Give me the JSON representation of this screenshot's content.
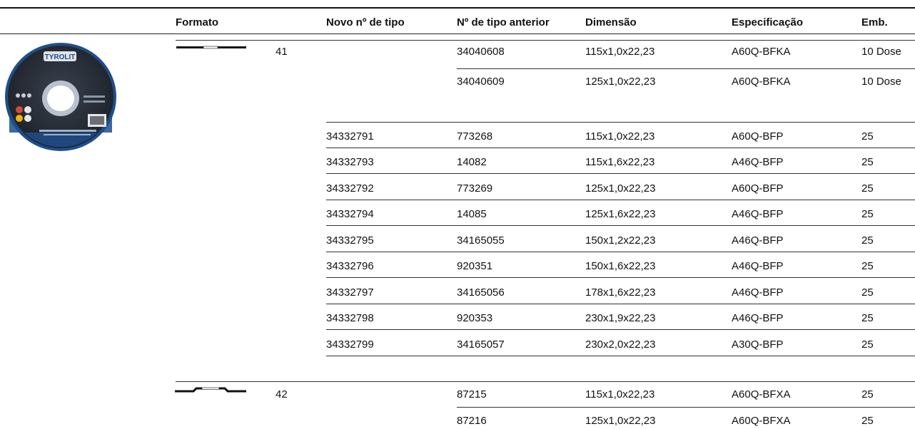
{
  "table": {
    "headers": {
      "formato": "Formato",
      "novo": "Novo nº de tipo",
      "anterior": "Nº de tipo anterior",
      "dimensao": "Dimensão",
      "especificacao": "Especificação",
      "emb": "Emb."
    },
    "shapes": [
      {
        "number": "41",
        "icon": "flat-disc-profile-icon"
      },
      {
        "number": "42",
        "icon": "depressed-center-disc-profile-icon"
      }
    ],
    "rows": [
      {
        "novo": "",
        "anterior": "34040608",
        "dimensao": "115x1,0x22,23",
        "especificacao": "A60Q-BFKA",
        "emb": "10 Dose"
      },
      {
        "novo": "",
        "anterior": "34040609",
        "dimensao": "125x1,0x22,23",
        "especificacao": "A60Q-BFKA",
        "emb": "10 Dose"
      },
      {
        "novo": "",
        "anterior": "",
        "dimensao": "",
        "especificacao": "",
        "emb": ""
      },
      {
        "novo": "34332791",
        "anterior": "773268",
        "dimensao": "115x1,0x22,23",
        "especificacao": "A60Q-BFP",
        "emb": "25"
      },
      {
        "novo": "34332793",
        "anterior": "14082",
        "dimensao": "115x1,6x22,23",
        "especificacao": "A46Q-BFP",
        "emb": "25"
      },
      {
        "novo": "34332792",
        "anterior": "773269",
        "dimensao": "125x1,0x22,23",
        "especificacao": "A60Q-BFP",
        "emb": "25"
      },
      {
        "novo": "34332794",
        "anterior": "14085",
        "dimensao": "125x1,6x22,23",
        "especificacao": "A46Q-BFP",
        "emb": "25"
      },
      {
        "novo": "34332795",
        "anterior": "34165055",
        "dimensao": "150x1,2x22,23",
        "especificacao": "A46Q-BFP",
        "emb": "25"
      },
      {
        "novo": "34332796",
        "anterior": "920351",
        "dimensao": "150x1,6x22,23",
        "especificacao": "A46Q-BFP",
        "emb": "25"
      },
      {
        "novo": "34332797",
        "anterior": "34165056",
        "dimensao": "178x1,6x22,23",
        "especificacao": "A46Q-BFP",
        "emb": "25"
      },
      {
        "novo": "34332798",
        "anterior": "920353",
        "dimensao": "230x1,9x22,23",
        "especificacao": "A46Q-BFP",
        "emb": "25"
      },
      {
        "novo": "34332799",
        "anterior": "34165057",
        "dimensao": "230x2,0x22,23",
        "especificacao": "A30Q-BFP",
        "emb": "25"
      },
      {
        "novo": "",
        "anterior": "87215",
        "dimensao": "115x1,0x22,23",
        "especificacao": "A60Q-BFXA",
        "emb": "25"
      },
      {
        "novo": "",
        "anterior": "87216",
        "dimensao": "125x1,0x22,23",
        "especificacao": "A60Q-BFXA",
        "emb": "25"
      }
    ]
  },
  "product_image": {
    "icon": "cutting-disc-photo-icon",
    "brand_text": "TYROLIT"
  },
  "colors": {
    "disc_blue": "#1f4e8c",
    "disc_dark": "#2a2f38",
    "rule": "#222222"
  }
}
